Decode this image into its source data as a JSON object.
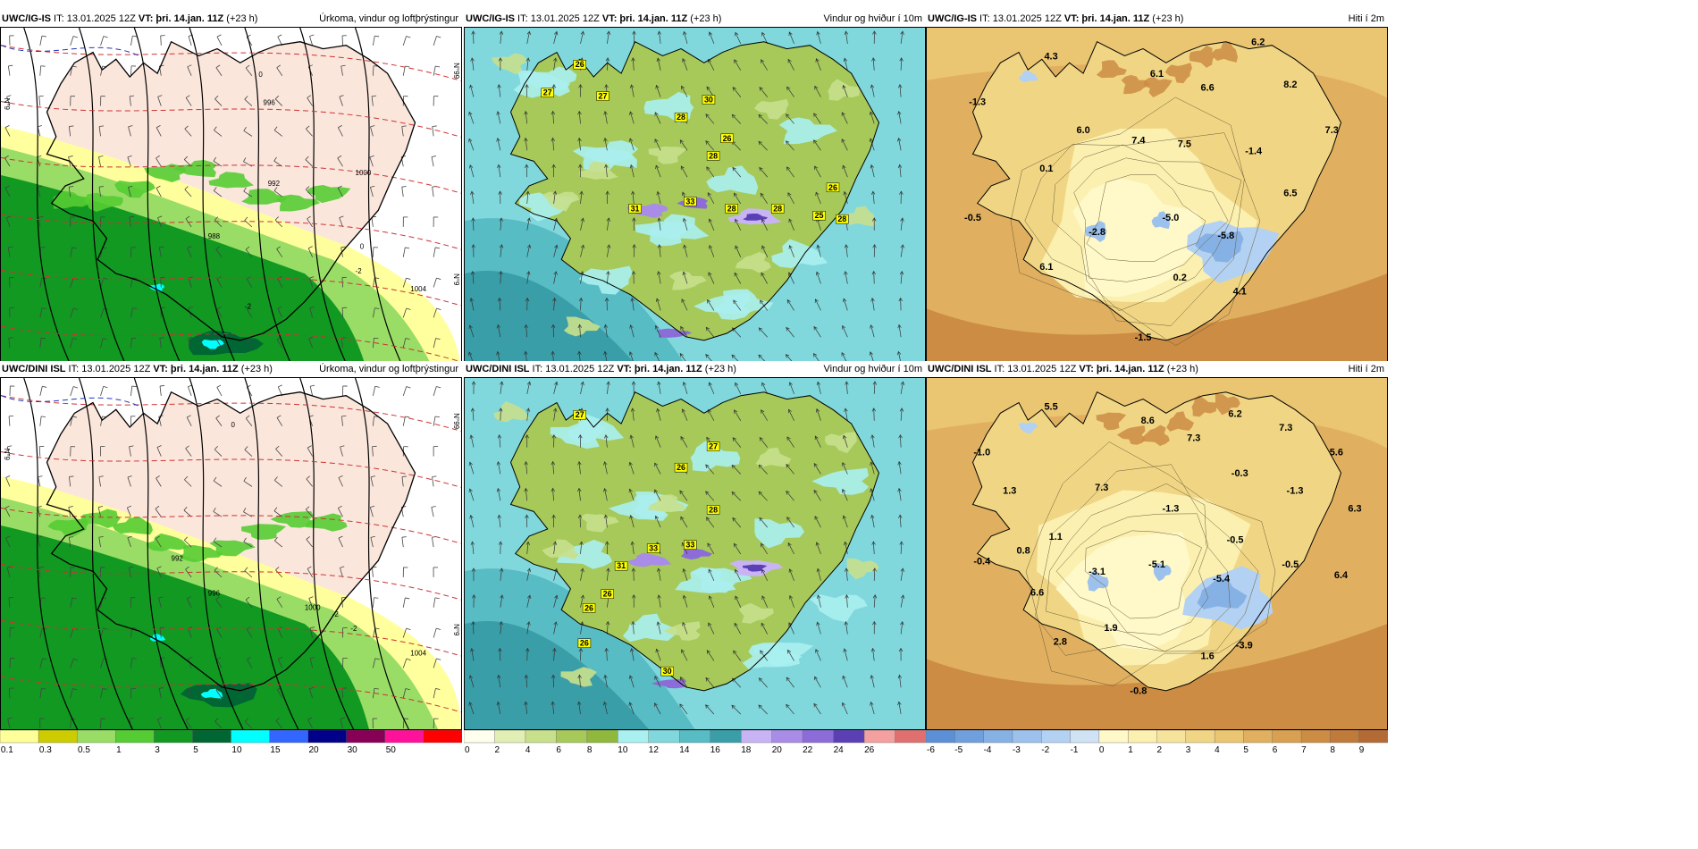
{
  "panels": [
    {
      "id": "p1",
      "source": "UWC/IG-IS",
      "init_label": "IT:",
      "init": "13.01.2025 12Z",
      "vt_label": "VT:",
      "valid": "þri. 14.jan. 11Z",
      "lead": "(+23 h)",
      "title": "Úrkoma, vindur og loftþrýstingur",
      "type": "precip",
      "edge_labels": [
        "N°99",
        "N°9",
        "N°9"
      ]
    },
    {
      "id": "p2",
      "source": "UWC/IG-IS",
      "init_label": "IT:",
      "init": "13.01.2025 12Z",
      "vt_label": "VT:",
      "valid": "þri. 14.jan. 11Z",
      "lead": "(+23 h)",
      "title": "Vindur og hviður í 10m",
      "type": "wind",
      "edge_labels": []
    },
    {
      "id": "p3",
      "source": "UWC/IG-IS",
      "init_label": "IT:",
      "init": "13.01.2025 12Z",
      "vt_label": "VT:",
      "valid": "þri. 14.jan. 11Z",
      "lead": "(+23 h)",
      "title": "Hiti í 2m",
      "type": "temp",
      "edge_labels": []
    },
    {
      "id": "p4",
      "source": "UWC/DINI ISL",
      "init_label": "IT:",
      "init": "13.01.2025 12Z",
      "vt_label": "VT:",
      "valid": "þri. 14.jan. 11Z",
      "lead": "(+23 h)",
      "title": "Úrkoma, vindur og loftþrýstingur",
      "type": "precip",
      "edge_labels": [
        "N°99",
        "N°9",
        "N°9"
      ]
    },
    {
      "id": "p5",
      "source": "UWC/DINI ISL",
      "init_label": "IT:",
      "init": "13.01.2025 12Z",
      "vt_label": "VT:",
      "valid": "þri. 14.jan. 11Z",
      "lead": "(+23 h)",
      "title": "Vindur og hviður í 10m",
      "type": "wind",
      "edge_labels": []
    },
    {
      "id": "p6",
      "source": "UWC/DINI ISL",
      "init_label": "IT:",
      "init": "13.01.2025 12Z",
      "vt_label": "VT:",
      "valid": "þri. 14.jan. 11Z",
      "lead": "(+23 h)",
      "title": "Hiti í 2m",
      "type": "temp",
      "edge_labels": []
    }
  ],
  "legends": {
    "precip": {
      "labels": [
        "0.1",
        "0.3",
        "0.5",
        "1",
        "3",
        "5",
        "10",
        "15",
        "20",
        "30",
        "50"
      ],
      "colors": [
        "#ffff99",
        "#cccc00",
        "#99dd66",
        "#55cc33",
        "#119922",
        "#006633",
        "#00ffff",
        "#3366ff",
        "#000088",
        "#880055",
        "#ff1199",
        "#ff0000"
      ]
    },
    "wind": {
      "labels": [
        "0",
        "2",
        "4",
        "6",
        "8",
        "10",
        "12",
        "14",
        "16",
        "18",
        "20",
        "22",
        "24",
        "26"
      ],
      "colors": [
        "#ffffee",
        "#e2efb4",
        "#c8e08c",
        "#a6c95a",
        "#8fb83c",
        "#aaf0f0",
        "#80d8dc",
        "#58bcc4",
        "#3a9ea8",
        "#c8b4f4",
        "#a88ce8",
        "#8c6cd8",
        "#5a40b4",
        "#f4a0a0",
        "#e07070"
      ]
    },
    "temp": {
      "labels": [
        "-6",
        "-5",
        "-4",
        "-3",
        "-2",
        "-1",
        "0",
        "1",
        "2",
        "3",
        "4",
        "5",
        "6",
        "7",
        "8",
        "9"
      ],
      "colors": [
        "#5b8fd6",
        "#6f9fdd",
        "#86b1e5",
        "#9cc1ec",
        "#b3d1f2",
        "#cfe3f4",
        "#fff8c8",
        "#fbf0b0",
        "#f7e49c",
        "#f0d684",
        "#eac572",
        "#e0b060",
        "#d8a050",
        "#cc8c44",
        "#c07a3a",
        "#b36a34"
      ]
    }
  },
  "temp_values": {
    "p3": [
      "4.3",
      "6.2",
      "6.1",
      "6.6",
      "8.2",
      "-1.3",
      "6.0",
      "7.4",
      "7.5",
      "7.3",
      "-1.4",
      "0.1",
      "6.5",
      "-0.5",
      "-2.8",
      "-5.0",
      "-5.8",
      "6.1",
      "0.2",
      "4.1",
      "-1.5"
    ],
    "p6": [
      "5.5",
      "8.6",
      "6.2",
      "7.3",
      "7.3",
      "-1.0",
      "5.6",
      "1.3",
      "7.3",
      "-1.3",
      "-0.3",
      "-1.3",
      "6.3",
      "1.1",
      "-0.5",
      "-0.4",
      "0.8",
      "-3.1",
      "-5.1",
      "-5.4",
      "-0.5",
      "6.4",
      "6.6",
      "1.9",
      "2.8",
      "1.6",
      "-3.9",
      "-0.8"
    ]
  },
  "wind_values": {
    "p2": [
      "26",
      "27",
      "27",
      "30",
      "28",
      "26",
      "28",
      "33",
      "31",
      "28",
      "28",
      "25",
      "26",
      "28"
    ],
    "p5": [
      "27",
      "27",
      "26",
      "28",
      "33",
      "33",
      "31",
      "26",
      "26",
      "26",
      "30"
    ]
  },
  "pressure_labels": {
    "p1": [
      "0",
      "0",
      "-2",
      "-2",
      "1004",
      "1000",
      "996",
      "992",
      "988"
    ],
    "p4": [
      "0",
      "-2",
      "-2",
      "1004",
      "1000",
      "996",
      "992"
    ]
  },
  "colors": {
    "coast": "#000000",
    "frame": "#000000"
  }
}
